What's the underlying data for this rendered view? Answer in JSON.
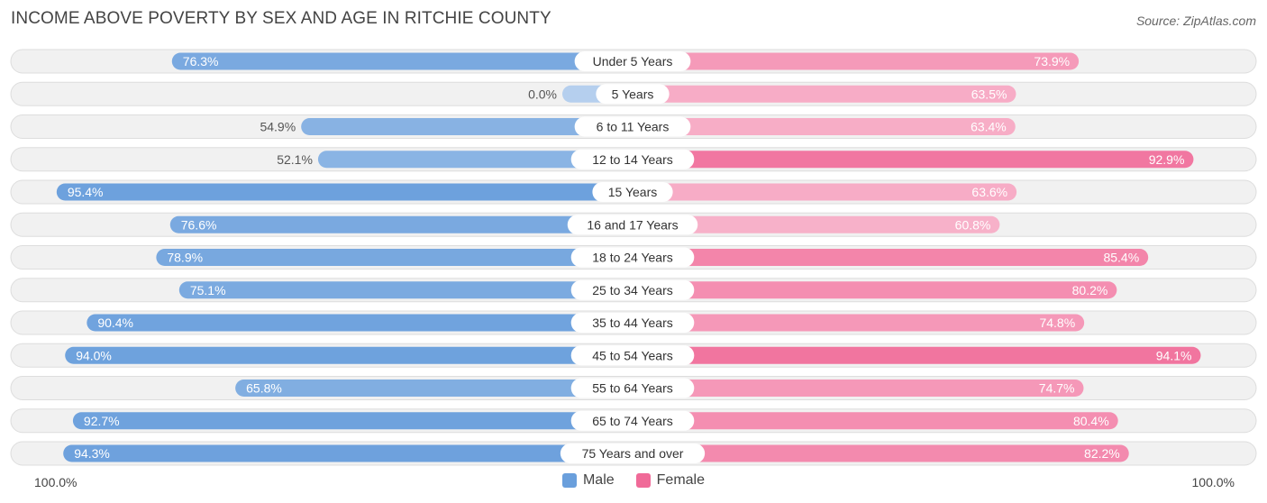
{
  "chart_data": {
    "type": "bar",
    "orientation": "horizontal-diverging",
    "title": "INCOME ABOVE POVERTY BY SEX AND AGE IN RITCHIE COUNTY",
    "source": "Source: ZipAtlas.com",
    "categories": [
      "Under 5 Years",
      "5 Years",
      "6 to 11 Years",
      "12 to 14 Years",
      "15 Years",
      "16 and 17 Years",
      "18 to 24 Years",
      "25 to 34 Years",
      "35 to 44 Years",
      "45 to 54 Years",
      "55 to 64 Years",
      "65 to 74 Years",
      "75 Years and over"
    ],
    "series": [
      {
        "name": "Male",
        "color": "#6a9fdc",
        "values": [
          76.3,
          0.0,
          54.9,
          52.1,
          95.4,
          76.6,
          78.9,
          75.1,
          90.4,
          94.0,
          65.8,
          92.7,
          94.3
        ],
        "labels": [
          "76.3%",
          "0.0%",
          "54.9%",
          "52.1%",
          "95.4%",
          "76.6%",
          "78.9%",
          "75.1%",
          "90.4%",
          "94.0%",
          "65.8%",
          "92.7%",
          "94.3%"
        ]
      },
      {
        "name": "Female",
        "color": "#f06a98",
        "values": [
          73.9,
          63.5,
          63.4,
          92.9,
          63.6,
          60.8,
          85.4,
          80.2,
          74.8,
          94.1,
          74.7,
          80.4,
          82.2
        ],
        "labels": [
          "73.9%",
          "63.5%",
          "63.4%",
          "92.9%",
          "63.6%",
          "60.8%",
          "85.4%",
          "80.2%",
          "74.8%",
          "94.1%",
          "74.7%",
          "80.4%",
          "82.2%"
        ]
      }
    ],
    "xlim": [
      0,
      100
    ],
    "axis_left_label": "100.0%",
    "axis_right_label": "100.0%",
    "legend": {
      "position": "bottom-center",
      "entries": [
        "Male",
        "Female"
      ]
    }
  }
}
